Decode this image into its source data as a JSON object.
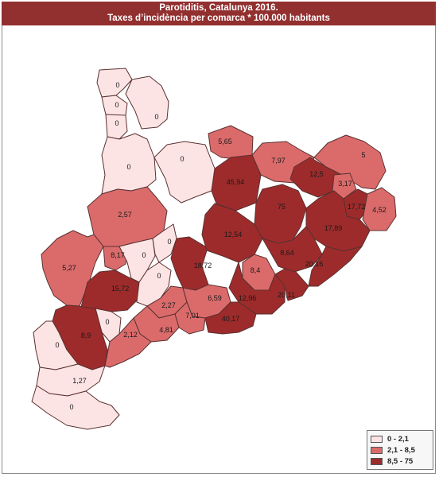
{
  "title": {
    "line1": "Parotiditis, Catalunya 2016.",
    "line2": "Taxes d’incidència per comarca * 100.000 habitants"
  },
  "colors": {
    "low": "#fde4e4",
    "mid": "#db6b6b",
    "high": "#9e2b2b",
    "title_bg": "#922f2f"
  },
  "legend": [
    {
      "label": "0 - 2,1",
      "level": "low"
    },
    {
      "label": "2,1 - 8,5",
      "level": "mid"
    },
    {
      "label": "8,5 - 75",
      "level": "high"
    }
  ],
  "comarques": [
    {
      "value": "0",
      "level": "low"
    },
    {
      "value": "0",
      "level": "low"
    },
    {
      "value": "0",
      "level": "low"
    },
    {
      "value": "0",
      "level": "low"
    },
    {
      "value": "0",
      "level": "low"
    },
    {
      "value": "5,65",
      "level": "mid"
    },
    {
      "value": "7,97",
      "level": "mid"
    },
    {
      "value": "5",
      "level": "mid"
    },
    {
      "value": "45,94",
      "level": "high"
    },
    {
      "value": "12,5",
      "level": "high"
    },
    {
      "value": "3,17",
      "level": "mid"
    },
    {
      "value": "0",
      "level": "low"
    },
    {
      "value": "2,57",
      "level": "mid"
    },
    {
      "value": "75",
      "level": "high"
    },
    {
      "value": "17,72",
      "level": "high"
    },
    {
      "value": "4,52",
      "level": "mid"
    },
    {
      "value": "17,89",
      "level": "high"
    },
    {
      "value": "12,54",
      "level": "high"
    },
    {
      "value": "5,27",
      "level": "mid"
    },
    {
      "value": "8,17",
      "level": "mid"
    },
    {
      "value": "0",
      "level": "low"
    },
    {
      "value": "0",
      "level": "low"
    },
    {
      "value": "18,72",
      "level": "high"
    },
    {
      "value": "8,64",
      "level": "high"
    },
    {
      "value": "20,16",
      "level": "high"
    },
    {
      "value": "8,4",
      "level": "mid"
    },
    {
      "value": "15,72",
      "level": "high"
    },
    {
      "value": "0",
      "level": "low"
    },
    {
      "value": "2,27",
      "level": "mid"
    },
    {
      "value": "6,59",
      "level": "mid"
    },
    {
      "value": "12,96",
      "level": "high"
    },
    {
      "value": "20,11",
      "level": "high"
    },
    {
      "value": "7,01",
      "level": "mid"
    },
    {
      "value": "40,17",
      "level": "high"
    },
    {
      "value": "4,81",
      "level": "mid"
    },
    {
      "value": "0",
      "level": "low"
    },
    {
      "value": "8,9",
      "level": "high"
    },
    {
      "value": "2,12",
      "level": "mid"
    },
    {
      "value": "0",
      "level": "low"
    },
    {
      "value": "1,27",
      "level": "low"
    },
    {
      "value": "0",
      "level": "low"
    }
  ]
}
